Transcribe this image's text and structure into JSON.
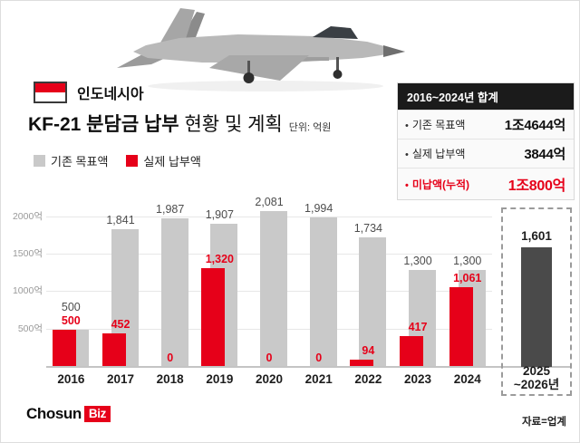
{
  "header": {
    "country_label": "인도네시아",
    "title_strong": "KF-21 분담금 납부",
    "title_rest": "현황 및 계획",
    "unit_label": "단위: 억원",
    "legend": {
      "target_label": "기존 목표액",
      "actual_label": "실제 납부액"
    }
  },
  "summary": {
    "title": "2016~2024년 합계",
    "rows": [
      {
        "label": "기존 목표액",
        "value": "1조4644억"
      },
      {
        "label": "실제 납부액",
        "value": "3844억"
      },
      {
        "label": "미납액(누적)",
        "value": "1조800억"
      }
    ]
  },
  "chart_data": {
    "type": "bar",
    "title": "KF-21 분담금 납부 현황 및 계획",
    "unit": "억원",
    "categories": [
      "2016",
      "2017",
      "2018",
      "2019",
      "2020",
      "2021",
      "2022",
      "2023",
      "2024"
    ],
    "series": [
      {
        "name": "기존 목표액",
        "color": "#c9c9c9",
        "values": [
          500,
          1841,
          1987,
          1907,
          2081,
          1994,
          1734,
          1300,
          1300
        ],
        "labels": [
          "500",
          "1,841",
          "1,987",
          "1,907",
          "2,081",
          "1,994",
          "1,734",
          "1,300",
          "1,300"
        ]
      },
      {
        "name": "실제 납부액",
        "color": "#e60019",
        "values": [
          500,
          452,
          0,
          1320,
          0,
          0,
          94,
          417,
          1061
        ],
        "labels": [
          "500",
          "452",
          "0",
          "1,320",
          "0",
          "0",
          "94",
          "417",
          "1,061"
        ]
      }
    ],
    "projection": {
      "year_line1": "2025",
      "year_line2": "~2026년",
      "value": 1601,
      "label": "1,601",
      "color": "#4a4a4a"
    },
    "ticks": [
      {
        "value": 500,
        "label": "500억"
      },
      {
        "value": 1000,
        "label": "1000억"
      },
      {
        "value": 1500,
        "label": "1500억"
      },
      {
        "value": 2000,
        "label": "2000억"
      }
    ],
    "ylim": [
      0,
      2200
    ],
    "grid": true,
    "legend_position": "top-left"
  },
  "footer": {
    "logo_text": "Chosun",
    "logo_badge": "Biz",
    "source": "자료=업계"
  }
}
